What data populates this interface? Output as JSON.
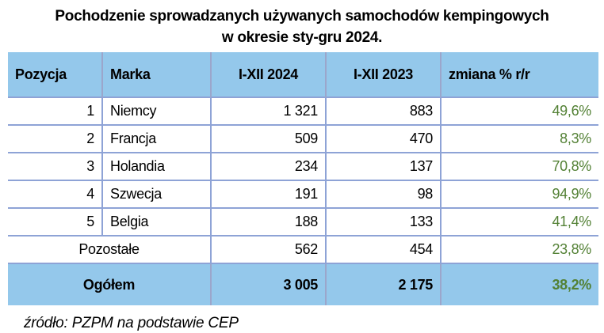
{
  "title": {
    "line1": "Pochodzenie sprowadzanych używanych samochodów kempingowych",
    "line2": "w okresie sty-gru 2024."
  },
  "table": {
    "columns": [
      "Pozycja",
      "Marka",
      "I-XII 2024",
      "I-XII 2023",
      "zmiana % r/r"
    ],
    "rows": [
      {
        "pozycja": "1",
        "marka": "Niemcy",
        "y2024": "1 321",
        "y2023": "883",
        "change": "49,6%"
      },
      {
        "pozycja": "2",
        "marka": "Francja",
        "y2024": "509",
        "y2023": "470",
        "change": "8,3%"
      },
      {
        "pozycja": "3",
        "marka": "Holandia",
        "y2024": "234",
        "y2023": "137",
        "change": "70,8%"
      },
      {
        "pozycja": "4",
        "marka": "Szwecja",
        "y2024": "191",
        "y2023": "98",
        "change": "94,9%"
      },
      {
        "pozycja": "5",
        "marka": "Belgia",
        "y2024": "188",
        "y2023": "133",
        "change": "41,4%"
      }
    ],
    "other_row": {
      "label": "Pozostałe",
      "y2024": "562",
      "y2023": "454",
      "change": "23,8%"
    },
    "total_row": {
      "label": "Ogółem",
      "y2024": "3 005",
      "y2023": "2 175",
      "change": "38,2%"
    }
  },
  "source": "źródło: PZPM na podstawie CEP",
  "colors": {
    "header_fill": "#94C8EB",
    "grid_line": "#8EA3D6",
    "blue_divider": "#9BA6CB",
    "change_green": "#538135",
    "text": "#000000"
  },
  "chart_data": {
    "type": "table",
    "title": "Pochodzenie sprowadzanych używanych samochodów kempingowych w okresie sty-gru 2024.",
    "columns": [
      "Pozycja",
      "Marka",
      "I-XII 2024",
      "I-XII 2023",
      "zmiana % r/r"
    ],
    "rows": [
      [
        1,
        "Niemcy",
        1321,
        883,
        "49,6%"
      ],
      [
        2,
        "Francja",
        509,
        470,
        "8,3%"
      ],
      [
        3,
        "Holandia",
        234,
        137,
        "70,8%"
      ],
      [
        4,
        "Szwecja",
        191,
        98,
        "94,9%"
      ],
      [
        5,
        "Belgia",
        188,
        133,
        "41,4%"
      ],
      [
        null,
        "Pozostałe",
        562,
        454,
        "23,8%"
      ],
      [
        null,
        "Ogółem",
        3005,
        2175,
        "38,2%"
      ]
    ],
    "notes": "Percentages are year-over-year change; Ogółem is the bold total row on blue fill; change column rendered in green.",
    "source": "źródło: PZPM na podstawie CEP"
  }
}
